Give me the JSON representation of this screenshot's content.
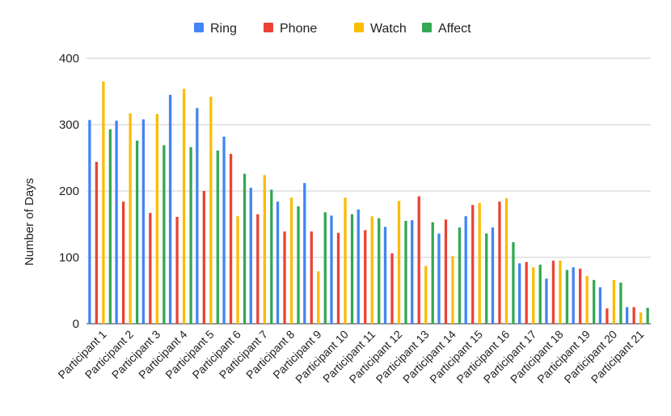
{
  "chart_data": {
    "type": "bar",
    "title": "",
    "xlabel": "",
    "ylabel": "Number of Days",
    "ylim": [
      0,
      400
    ],
    "yticks": [
      0,
      100,
      200,
      300,
      400
    ],
    "grid": true,
    "legend_position": "top-center",
    "categories": [
      "Participant 1",
      "Participant 2",
      "Participant 3",
      "Participant 4",
      "Participant 5",
      "Participant 6",
      "Participant 7",
      "Participant 8",
      "Participant 9",
      "Participant 10",
      "Participant 11",
      "Participant 12",
      "Participant 13",
      "Participant 14",
      "Participant 15",
      "Participant 16",
      "Participant 17",
      "Participant 18",
      "Participant 19",
      "Participant 20",
      "Participant 21"
    ],
    "series": [
      {
        "name": "Ring",
        "color": "#4285F4",
        "values": [
          307,
          306,
          308,
          345,
          325,
          282,
          205,
          184,
          212,
          163,
          172,
          146,
          156,
          136,
          162,
          145,
          91,
          68,
          85,
          55,
          25
        ]
      },
      {
        "name": "Phone",
        "color": "#EA4335",
        "values": [
          244,
          184,
          167,
          161,
          200,
          256,
          165,
          139,
          139,
          137,
          141,
          106,
          192,
          157,
          179,
          184,
          93,
          95,
          83,
          23,
          25
        ]
      },
      {
        "name": "Watch",
        "color": "#FBBC04",
        "values": [
          365,
          317,
          316,
          354,
          342,
          162,
          224,
          190,
          79,
          190,
          162,
          185,
          87,
          102,
          182,
          189,
          85,
          95,
          72,
          66,
          17
        ]
      },
      {
        "name": "Affect",
        "color": "#34A853",
        "values": [
          293,
          276,
          269,
          266,
          261,
          226,
          202,
          177,
          168,
          165,
          159,
          155,
          153,
          145,
          136,
          123,
          89,
          81,
          66,
          62,
          24
        ]
      }
    ]
  }
}
